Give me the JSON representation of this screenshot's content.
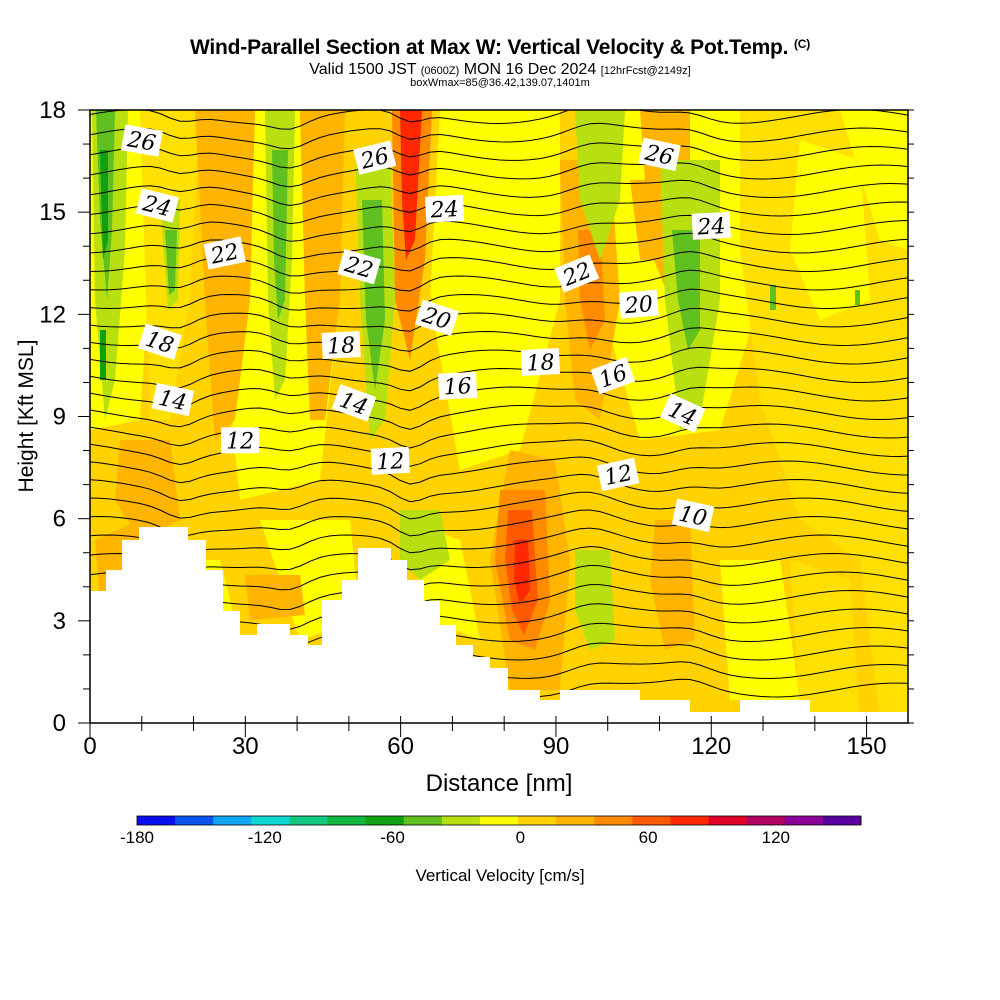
{
  "title": {
    "main": "Wind-Parallel Section at Max W: Vertical Velocity & Pot.Temp.",
    "copyright": "(C)",
    "valid_prefix": "Valid 1500 JST",
    "valid_z": "(0600Z)",
    "valid_date": "MON 16 Dec 2024",
    "valid_fcst": "[12hrFcst@2149z]",
    "box": "boxWmax=85@36.42,139.07,1401m"
  },
  "chart_data": {
    "type": "heatmap",
    "xlabel": "Distance [nm]",
    "ylabel": "Height [Kft MSL]",
    "xlim": [
      0,
      158
    ],
    "ylim": [
      0,
      18
    ],
    "x_ticks": [
      "0",
      "30",
      "60",
      "90",
      "120",
      "150"
    ],
    "y_ticks": [
      "0",
      "3",
      "6",
      "9",
      "12",
      "15",
      "18"
    ],
    "colorbar": {
      "label": "Vertical Velocity [cm/s]",
      "ticks": [
        "-180",
        "-120",
        "-60",
        "0",
        "60",
        "120"
      ],
      "min": -180,
      "max": 140,
      "step": 20,
      "colors": [
        "#0a0ff0",
        "#0a55f0",
        "#10a5f0",
        "#10d8d0",
        "#10c880",
        "#10b840",
        "#10a010",
        "#60c020",
        "#b8e010",
        "#ffff00",
        "#ffd200",
        "#ffb400",
        "#ff8c00",
        "#ff5a00",
        "#ff2800",
        "#e00028",
        "#b00060",
        "#8a0098",
        "#5a00a0"
      ]
    },
    "theta_contour_labels": [
      {
        "value": "26",
        "x": 10,
        "y": 17.1
      },
      {
        "value": "26",
        "x": 55,
        "y": 16.6
      },
      {
        "value": "26",
        "x": 110,
        "y": 16.7
      },
      {
        "value": "24",
        "x": 13,
        "y": 15.2
      },
      {
        "value": "24",
        "x": 68.5,
        "y": 15.1
      },
      {
        "value": "24",
        "x": 120,
        "y": 14.6
      },
      {
        "value": "22",
        "x": 26,
        "y": 13.8
      },
      {
        "value": "22",
        "x": 52,
        "y": 13.4
      },
      {
        "value": "22",
        "x": 94,
        "y": 13.2
      },
      {
        "value": "20",
        "x": 67,
        "y": 11.9
      },
      {
        "value": "20",
        "x": 106,
        "y": 12.3
      },
      {
        "value": "18",
        "x": 13.5,
        "y": 11.2
      },
      {
        "value": "18",
        "x": 48.5,
        "y": 11.1
      },
      {
        "value": "18",
        "x": 87,
        "y": 10.6
      },
      {
        "value": "16",
        "x": 71,
        "y": 9.9
      },
      {
        "value": "16",
        "x": 101,
        "y": 10.2
      },
      {
        "value": "14",
        "x": 16,
        "y": 9.5
      },
      {
        "value": "14",
        "x": 51,
        "y": 9.4
      },
      {
        "value": "14",
        "x": 114.5,
        "y": 9.1
      },
      {
        "value": "12",
        "x": 29,
        "y": 8.3
      },
      {
        "value": "12",
        "x": 58,
        "y": 7.7
      },
      {
        "value": "12",
        "x": 102,
        "y": 7.3
      },
      {
        "value": "10",
        "x": 116.5,
        "y": 6.1
      }
    ]
  }
}
